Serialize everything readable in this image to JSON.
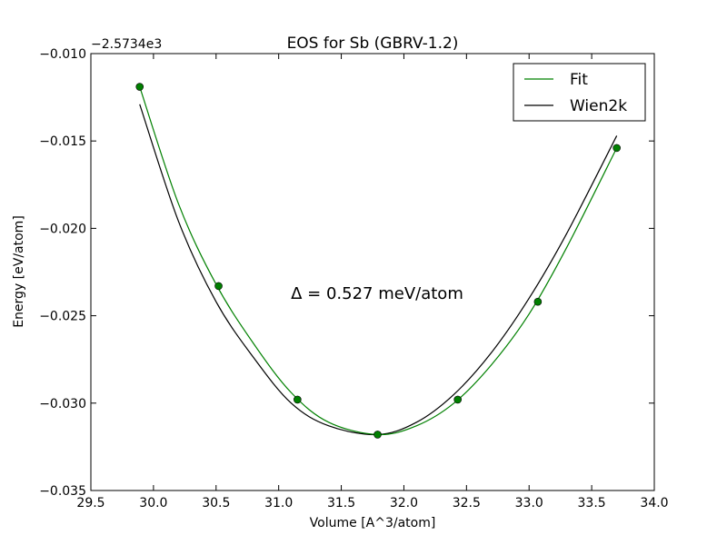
{
  "chart_data": {
    "type": "line",
    "title": "EOS for Sb (GBRV-1.2)",
    "xlabel": "Volume [A^3/atom]",
    "ylabel": "Energy [eV/atom]",
    "offset_label": "−2.5734e3",
    "annotation": "Δ = 0.527 meV/atom",
    "xlim": [
      29.5,
      34.0
    ],
    "ylim": [
      -0.035,
      -0.01
    ],
    "xticks": [
      29.5,
      30.0,
      30.5,
      31.0,
      31.5,
      32.0,
      32.5,
      33.0,
      33.5,
      34.0
    ],
    "xtick_labels": [
      "29.5",
      "30.0",
      "30.5",
      "31.0",
      "31.5",
      "32.0",
      "32.5",
      "33.0",
      "33.5",
      "34.0"
    ],
    "yticks": [
      -0.035,
      -0.03,
      -0.025,
      -0.02,
      -0.015,
      -0.01
    ],
    "ytick_labels": [
      "−0.035",
      "−0.030",
      "−0.025",
      "−0.020",
      "−0.015",
      "−0.010"
    ],
    "legend_position": "top-right",
    "grid": false,
    "points": {
      "color": "#007f00",
      "x": [
        29.89,
        30.52,
        31.15,
        31.79,
        32.43,
        33.07,
        33.7
      ],
      "y": [
        -0.0119,
        -0.0233,
        -0.0298,
        -0.0318,
        -0.0298,
        -0.0242,
        -0.0154
      ]
    },
    "series": [
      {
        "name": "Fit",
        "color": "#008000",
        "x": [
          29.89,
          30.2,
          30.5,
          30.8,
          31.1,
          31.4,
          31.79,
          32.1,
          32.4,
          32.7,
          33.0,
          33.3,
          33.7
        ],
        "y": [
          -0.0119,
          -0.0186,
          -0.0232,
          -0.0266,
          -0.0294,
          -0.0311,
          -0.0318,
          -0.0313,
          -0.03,
          -0.0278,
          -0.0249,
          -0.0211,
          -0.0154
        ]
      },
      {
        "name": "Wien2k",
        "color": "#000000",
        "x": [
          29.89,
          30.2,
          30.5,
          30.8,
          31.1,
          31.4,
          31.79,
          32.1,
          32.4,
          32.7,
          33.0,
          33.3,
          33.7
        ],
        "y": [
          -0.0129,
          -0.0196,
          -0.0242,
          -0.0274,
          -0.03,
          -0.0313,
          -0.0318,
          -0.0311,
          -0.0295,
          -0.0271,
          -0.024,
          -0.0203,
          -0.0147
        ]
      }
    ]
  }
}
